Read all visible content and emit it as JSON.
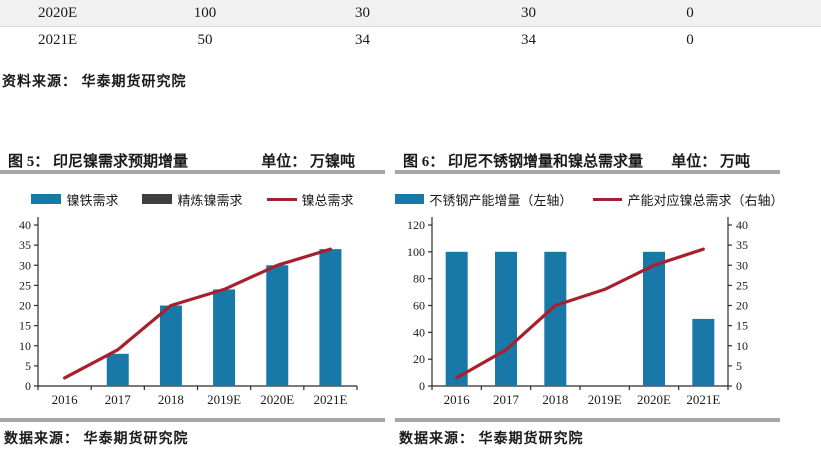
{
  "table": {
    "rows": [
      {
        "year": "2020E",
        "values": [
          "100",
          "30",
          "30",
          "0"
        ]
      },
      {
        "year": "2021E",
        "values": [
          "50",
          "34",
          "34",
          "0"
        ]
      }
    ],
    "source": "资料来源： 华泰期货研究院"
  },
  "colors": {
    "bar_blue": "#1878A8",
    "refined_dark": "#3F3F3F",
    "line_red": "#A8202E",
    "divider_gray": "#A6A6A6",
    "row_shade": "#F1F1F1"
  },
  "chart_data": [
    {
      "id": "fig5",
      "type": "bar+line",
      "title": "图 5： 印尼镍需求预期增量",
      "unit_label": "单位： 万镍吨",
      "source": "数据来源： 华泰期货研究院",
      "categories": [
        "2016",
        "2017",
        "2018",
        "2019E",
        "2020E",
        "2021E"
      ],
      "left_axis": {
        "min": 0,
        "max": 40,
        "step": 5
      },
      "legend_position": "top",
      "grid": false,
      "series": [
        {
          "name": "镍铁需求",
          "type": "bar",
          "axis": "left",
          "color": "#1878A8",
          "values": [
            0,
            8,
            20,
            24,
            30,
            34
          ]
        },
        {
          "name": "精炼镍需求",
          "type": "bar",
          "axis": "left",
          "color": "#3F3F3F",
          "values": [
            0,
            0,
            0,
            0,
            0,
            0
          ]
        },
        {
          "name": "镍总需求",
          "type": "line",
          "axis": "left",
          "color": "#A8202E",
          "values": [
            2,
            9,
            20,
            24,
            30,
            34
          ]
        }
      ]
    },
    {
      "id": "fig6",
      "type": "bar+line",
      "title": "图 6： 印尼不锈钢增量和镍总需求量",
      "unit_label": "单位： 万吨",
      "source": "数据来源： 华泰期货研究院",
      "categories": [
        "2016",
        "2017",
        "2018",
        "2019E",
        "2020E",
        "2021E"
      ],
      "left_axis": {
        "min": 0,
        "max": 120,
        "step": 20
      },
      "right_axis": {
        "min": 0,
        "max": 40,
        "step": 5
      },
      "legend_position": "top",
      "grid": false,
      "series": [
        {
          "name": "不锈钢产能增量（左轴）",
          "type": "bar",
          "axis": "left",
          "color": "#1878A8",
          "values": [
            100,
            100,
            100,
            0,
            100,
            50
          ]
        },
        {
          "name": "产能对应镍总需求（右轴）",
          "type": "line",
          "axis": "right",
          "color": "#A8202E",
          "values": [
            2,
            9,
            20,
            24,
            30,
            34
          ]
        }
      ]
    }
  ]
}
